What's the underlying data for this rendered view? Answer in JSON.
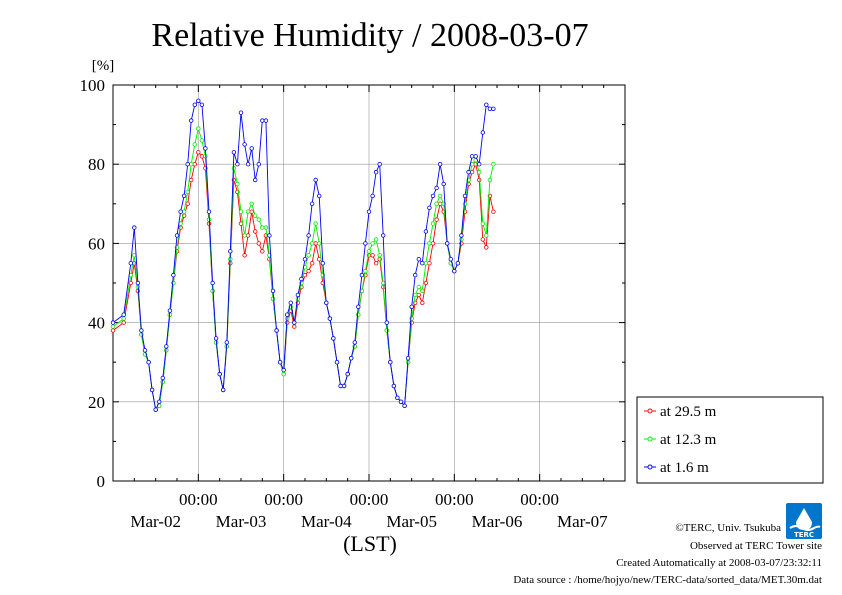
{
  "chart_data": {
    "type": "line",
    "title": "Relative Humidity / 2008-03-07",
    "ylabel": "[%]",
    "xlabel": "(LST)",
    "ylim": [
      0,
      100
    ],
    "yticks": [
      "0",
      "20",
      "40",
      "60",
      "80",
      "100"
    ],
    "xlim_hours": [
      0,
      144
    ],
    "xticks": [
      {
        "hour": 24,
        "time": "00:00",
        "date": "Mar-02"
      },
      {
        "hour": 48,
        "time": "00:00",
        "date": "Mar-03"
      },
      {
        "hour": 72,
        "time": "00:00",
        "date": "Mar-04"
      },
      {
        "hour": 96,
        "time": "00:00",
        "date": "Mar-05"
      },
      {
        "hour": 120,
        "time": "00:00",
        "date": "Mar-06"
      },
      {
        "hour": 144,
        "time": "",
        "date": "Mar-07"
      }
    ],
    "grid": true,
    "legend_position": "bottom-right",
    "series": [
      {
        "name": "at 29.5 m",
        "color": "#ff0000",
        "points": [
          [
            0,
            38
          ],
          [
            3,
            40
          ],
          [
            5,
            50
          ],
          [
            6,
            55
          ],
          [
            7,
            48
          ],
          [
            8,
            37
          ],
          [
            9,
            32
          ],
          [
            10,
            30
          ],
          [
            11,
            23
          ],
          [
            12,
            18
          ],
          [
            13,
            19
          ],
          [
            14,
            25
          ],
          [
            15,
            33
          ],
          [
            16,
            42
          ],
          [
            17,
            50
          ],
          [
            18,
            58
          ],
          [
            19,
            64
          ],
          [
            20,
            67
          ],
          [
            21,
            70
          ],
          [
            22,
            76
          ],
          [
            23,
            80
          ],
          [
            24,
            83
          ],
          [
            25,
            82
          ],
          [
            26,
            79
          ],
          [
            27,
            65
          ],
          [
            28,
            48
          ],
          [
            29,
            35
          ],
          [
            30,
            27
          ],
          [
            31,
            23
          ],
          [
            32,
            34
          ],
          [
            33,
            55
          ],
          [
            34,
            76
          ],
          [
            35,
            73
          ],
          [
            36,
            65
          ],
          [
            37,
            57
          ],
          [
            38,
            62
          ],
          [
            39,
            68
          ],
          [
            40,
            63
          ],
          [
            41,
            60
          ],
          [
            42,
            58
          ],
          [
            43,
            62
          ],
          [
            44,
            56
          ],
          [
            45,
            46
          ],
          [
            46,
            38
          ],
          [
            47,
            30
          ],
          [
            48,
            27
          ],
          [
            49,
            40
          ],
          [
            50,
            43
          ],
          [
            51,
            39
          ],
          [
            52,
            45
          ],
          [
            53,
            49
          ],
          [
            54,
            52
          ],
          [
            55,
            53
          ],
          [
            56,
            55
          ],
          [
            57,
            60
          ],
          [
            58,
            56
          ],
          [
            59,
            50
          ],
          [
            60,
            45
          ],
          [
            61,
            41
          ],
          [
            62,
            36
          ],
          [
            63,
            30
          ],
          [
            64,
            24
          ],
          [
            65,
            24
          ],
          [
            66,
            27
          ],
          [
            67,
            31
          ],
          [
            68,
            34
          ],
          [
            69,
            42
          ],
          [
            70,
            48
          ],
          [
            71,
            52
          ],
          [
            72,
            57
          ],
          [
            73,
            57
          ],
          [
            74,
            55
          ],
          [
            75,
            56
          ],
          [
            76,
            49
          ],
          [
            77,
            38
          ],
          [
            78,
            30
          ],
          [
            79,
            24
          ],
          [
            80,
            21
          ],
          [
            81,
            20
          ],
          [
            82,
            19
          ],
          [
            83,
            30
          ],
          [
            84,
            40
          ],
          [
            85,
            45
          ],
          [
            86,
            47
          ],
          [
            87,
            45
          ],
          [
            88,
            50
          ],
          [
            89,
            55
          ],
          [
            90,
            60
          ],
          [
            91,
            66
          ],
          [
            92,
            70
          ],
          [
            93,
            68
          ],
          [
            94,
            60
          ],
          [
            95,
            55
          ],
          [
            96,
            53
          ],
          [
            97,
            55
          ],
          [
            98,
            60
          ],
          [
            99,
            68
          ],
          [
            100,
            75
          ],
          [
            101,
            78
          ],
          [
            102,
            80
          ],
          [
            103,
            76
          ],
          [
            104,
            61
          ],
          [
            105,
            59
          ],
          [
            106,
            72
          ],
          [
            107,
            68
          ]
        ]
      },
      {
        "name": "at 12.3 m",
        "color": "#00ee00",
        "points": [
          [
            0,
            39
          ],
          [
            3,
            41
          ],
          [
            5,
            52
          ],
          [
            6,
            57
          ],
          [
            7,
            49
          ],
          [
            8,
            37
          ],
          [
            9,
            32
          ],
          [
            10,
            30
          ],
          [
            11,
            23
          ],
          [
            12,
            18
          ],
          [
            13,
            19
          ],
          [
            14,
            25
          ],
          [
            15,
            33
          ],
          [
            16,
            42
          ],
          [
            17,
            50
          ],
          [
            18,
            59
          ],
          [
            19,
            65
          ],
          [
            20,
            68
          ],
          [
            21,
            73
          ],
          [
            22,
            80
          ],
          [
            23,
            85
          ],
          [
            24,
            89
          ],
          [
            25,
            86
          ],
          [
            26,
            82
          ],
          [
            27,
            66
          ],
          [
            28,
            48
          ],
          [
            29,
            35
          ],
          [
            30,
            27
          ],
          [
            31,
            23
          ],
          [
            32,
            34
          ],
          [
            33,
            56
          ],
          [
            34,
            79
          ],
          [
            35,
            75
          ],
          [
            36,
            68
          ],
          [
            37,
            62
          ],
          [
            38,
            68
          ],
          [
            39,
            70
          ],
          [
            40,
            67
          ],
          [
            41,
            66
          ],
          [
            42,
            64
          ],
          [
            43,
            64
          ],
          [
            44,
            57
          ],
          [
            45,
            46
          ],
          [
            46,
            38
          ],
          [
            47,
            30
          ],
          [
            48,
            27
          ],
          [
            49,
            41
          ],
          [
            50,
            44
          ],
          [
            51,
            40
          ],
          [
            52,
            46
          ],
          [
            53,
            50
          ],
          [
            54,
            54
          ],
          [
            55,
            57
          ],
          [
            56,
            60
          ],
          [
            57,
            65
          ],
          [
            58,
            60
          ],
          [
            59,
            52
          ],
          [
            60,
            45
          ],
          [
            61,
            41
          ],
          [
            62,
            36
          ],
          [
            63,
            30
          ],
          [
            64,
            24
          ],
          [
            65,
            24
          ],
          [
            66,
            27
          ],
          [
            67,
            31
          ],
          [
            68,
            34
          ],
          [
            69,
            42
          ],
          [
            70,
            48
          ],
          [
            71,
            53
          ],
          [
            72,
            58
          ],
          [
            73,
            60
          ],
          [
            74,
            61
          ],
          [
            75,
            57
          ],
          [
            76,
            50
          ],
          [
            77,
            38
          ],
          [
            78,
            30
          ],
          [
            79,
            24
          ],
          [
            80,
            21
          ],
          [
            81,
            20
          ],
          [
            82,
            19
          ],
          [
            83,
            30
          ],
          [
            84,
            41
          ],
          [
            85,
            47
          ],
          [
            86,
            49
          ],
          [
            87,
            48
          ],
          [
            88,
            55
          ],
          [
            89,
            60
          ],
          [
            90,
            65
          ],
          [
            91,
            70
          ],
          [
            92,
            72
          ],
          [
            93,
            70
          ],
          [
            94,
            60
          ],
          [
            95,
            55
          ],
          [
            96,
            53
          ],
          [
            97,
            55
          ],
          [
            98,
            61
          ],
          [
            99,
            70
          ],
          [
            100,
            76
          ],
          [
            101,
            80
          ],
          [
            102,
            81
          ],
          [
            103,
            78
          ],
          [
            104,
            65
          ],
          [
            105,
            62
          ],
          [
            106,
            76
          ],
          [
            107,
            80
          ]
        ]
      },
      {
        "name": "at 1.6 m",
        "color": "#0000ff",
        "points": [
          [
            0,
            40
          ],
          [
            3,
            42
          ],
          [
            5,
            55
          ],
          [
            6,
            64
          ],
          [
            7,
            50
          ],
          [
            8,
            38
          ],
          [
            9,
            33
          ],
          [
            10,
            30
          ],
          [
            11,
            23
          ],
          [
            12,
            18
          ],
          [
            13,
            20
          ],
          [
            14,
            26
          ],
          [
            15,
            34
          ],
          [
            16,
            43
          ],
          [
            17,
            52
          ],
          [
            18,
            62
          ],
          [
            19,
            68
          ],
          [
            20,
            72
          ],
          [
            21,
            80
          ],
          [
            22,
            91
          ],
          [
            23,
            95
          ],
          [
            24,
            96
          ],
          [
            25,
            95
          ],
          [
            26,
            84
          ],
          [
            27,
            68
          ],
          [
            28,
            50
          ],
          [
            29,
            36
          ],
          [
            30,
            27
          ],
          [
            31,
            23
          ],
          [
            32,
            35
          ],
          [
            33,
            58
          ],
          [
            34,
            83
          ],
          [
            35,
            80
          ],
          [
            36,
            93
          ],
          [
            37,
            85
          ],
          [
            38,
            80
          ],
          [
            39,
            84
          ],
          [
            40,
            76
          ],
          [
            41,
            80
          ],
          [
            42,
            91
          ],
          [
            43,
            91
          ],
          [
            44,
            62
          ],
          [
            45,
            48
          ],
          [
            46,
            38
          ],
          [
            47,
            30
          ],
          [
            48,
            28
          ],
          [
            49,
            42
          ],
          [
            50,
            45
          ],
          [
            51,
            40
          ],
          [
            52,
            47
          ],
          [
            53,
            51
          ],
          [
            54,
            56
          ],
          [
            55,
            62
          ],
          [
            56,
            70
          ],
          [
            57,
            76
          ],
          [
            58,
            72
          ],
          [
            59,
            55
          ],
          [
            60,
            45
          ],
          [
            61,
            41
          ],
          [
            62,
            36
          ],
          [
            63,
            30
          ],
          [
            64,
            24
          ],
          [
            65,
            24
          ],
          [
            66,
            27
          ],
          [
            67,
            31
          ],
          [
            68,
            35
          ],
          [
            69,
            44
          ],
          [
            70,
            52
          ],
          [
            71,
            60
          ],
          [
            72,
            68
          ],
          [
            73,
            72
          ],
          [
            74,
            78
          ],
          [
            75,
            80
          ],
          [
            76,
            62
          ],
          [
            77,
            40
          ],
          [
            78,
            30
          ],
          [
            79,
            24
          ],
          [
            80,
            21
          ],
          [
            81,
            20
          ],
          [
            82,
            19
          ],
          [
            83,
            31
          ],
          [
            84,
            44
          ],
          [
            85,
            52
          ],
          [
            86,
            56
          ],
          [
            87,
            55
          ],
          [
            88,
            63
          ],
          [
            89,
            69
          ],
          [
            90,
            72
          ],
          [
            91,
            74
          ],
          [
            92,
            80
          ],
          [
            93,
            75
          ],
          [
            94,
            60
          ],
          [
            95,
            56
          ],
          [
            96,
            53
          ],
          [
            97,
            55
          ],
          [
            98,
            62
          ],
          [
            99,
            72
          ],
          [
            100,
            78
          ],
          [
            101,
            82
          ],
          [
            102,
            82
          ],
          [
            103,
            80
          ],
          [
            104,
            88
          ],
          [
            105,
            95
          ],
          [
            106,
            94
          ],
          [
            107,
            94
          ]
        ]
      }
    ]
  },
  "footer": {
    "copyright": "©TERC, Univ. Tsukuba",
    "observed": "Observed at TERC Tower site",
    "created": "Created Automatically at 2008-03-07/23:32:11",
    "source": "Data source : /home/hojyo/new/TERC-data/sorted_data/MET.30m.dat"
  },
  "logo": {
    "text": "TERC",
    "color": "#0077cc"
  }
}
